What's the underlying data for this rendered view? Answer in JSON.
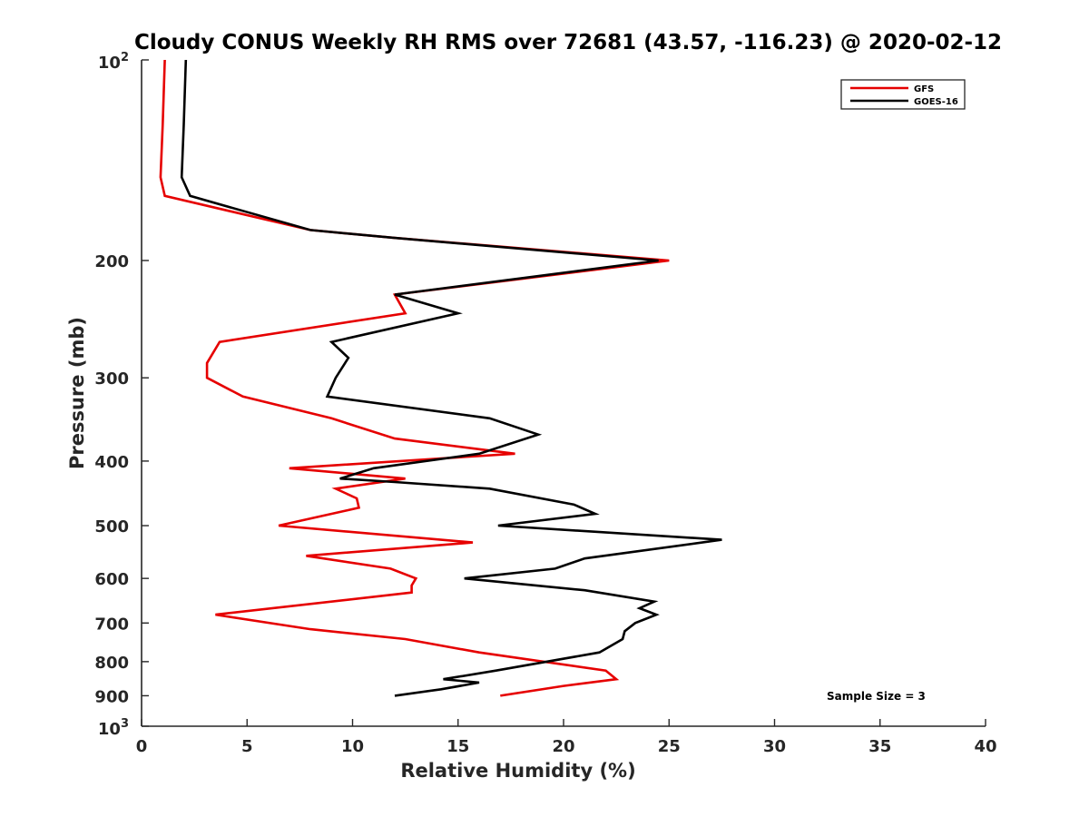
{
  "chart_data": {
    "type": "line",
    "title": "Cloudy CONUS Weekly RH RMS over 72681 (43.57, -116.23) @ 2020-02-12",
    "xlabel": "Relative Humidity (%)",
    "ylabel": "Pressure (mb)",
    "xlim": [
      0,
      40
    ],
    "ylim": [
      100,
      1000
    ],
    "y_scale": "log",
    "y_reversed": true,
    "x_ticks": [
      "0",
      "5",
      "10",
      "15",
      "20",
      "25",
      "30",
      "35",
      "40"
    ],
    "y_ticks": [
      {
        "value": 100,
        "base": "10",
        "exp": "2"
      },
      {
        "value": 200,
        "label": "200"
      },
      {
        "value": 300,
        "label": "300"
      },
      {
        "value": 400,
        "label": "400"
      },
      {
        "value": 500,
        "label": "500"
      },
      {
        "value": 600,
        "label": "600"
      },
      {
        "value": 700,
        "label": "700"
      },
      {
        "value": 800,
        "label": "800"
      },
      {
        "value": 900,
        "label": "900"
      },
      {
        "value": 1000,
        "base": "10",
        "exp": "3"
      }
    ],
    "grid": false,
    "legend_position": "top-right",
    "annotation": "Sample Size = 3",
    "series": [
      {
        "name": "GFS",
        "color": "#e60000",
        "points": [
          [
            1.1,
            100
          ],
          [
            1.0,
            125
          ],
          [
            0.9,
            150
          ],
          [
            1.1,
            160
          ],
          [
            8,
            180
          ],
          [
            12,
            185
          ],
          [
            25,
            200
          ],
          [
            12,
            225
          ],
          [
            12.5,
            240
          ],
          [
            3.7,
            265
          ],
          [
            3.1,
            285
          ],
          [
            3.1,
            300
          ],
          [
            4.8,
            320
          ],
          [
            9,
            345
          ],
          [
            12,
            370
          ],
          [
            17.7,
            390
          ],
          [
            7,
            410
          ],
          [
            12.5,
            425
          ],
          [
            9.2,
            440
          ],
          [
            10.2,
            455
          ],
          [
            10.3,
            470
          ],
          [
            6.5,
            500
          ],
          [
            15.7,
            530
          ],
          [
            7.8,
            555
          ],
          [
            11.8,
            580
          ],
          [
            13.0,
            600
          ],
          [
            12.8,
            615
          ],
          [
            12.8,
            630
          ],
          [
            3.5,
            680
          ],
          [
            8,
            715
          ],
          [
            12.5,
            740
          ],
          [
            16,
            775
          ],
          [
            22,
            825
          ],
          [
            22.5,
            850
          ],
          [
            20,
            870
          ],
          [
            17,
            900
          ]
        ]
      },
      {
        "name": "GOES-16",
        "color": "#000000",
        "points": [
          [
            2.1,
            100
          ],
          [
            2.0,
            125
          ],
          [
            1.9,
            150
          ],
          [
            2.3,
            160
          ],
          [
            8,
            180
          ],
          [
            12,
            185
          ],
          [
            24.5,
            200
          ],
          [
            12,
            225
          ],
          [
            15,
            240
          ],
          [
            9,
            265
          ],
          [
            9.8,
            280
          ],
          [
            9.2,
            300
          ],
          [
            8.8,
            320
          ],
          [
            16.5,
            345
          ],
          [
            18.8,
            365
          ],
          [
            16,
            390
          ],
          [
            11,
            410
          ],
          [
            9.4,
            425
          ],
          [
            12,
            430
          ],
          [
            16.5,
            440
          ],
          [
            20.5,
            465
          ],
          [
            21.5,
            480
          ],
          [
            16.9,
            500
          ],
          [
            27.5,
            525
          ],
          [
            21,
            560
          ],
          [
            19.6,
            580
          ],
          [
            15.3,
            600
          ],
          [
            21,
            625
          ],
          [
            24.3,
            650
          ],
          [
            23.6,
            665
          ],
          [
            24.4,
            680
          ],
          [
            23.4,
            700
          ],
          [
            22.9,
            720
          ],
          [
            22.8,
            740
          ],
          [
            21.7,
            775
          ],
          [
            16.8,
            825
          ],
          [
            14.3,
            850
          ],
          [
            16.0,
            860
          ],
          [
            14.2,
            880
          ],
          [
            12,
            900
          ]
        ]
      }
    ]
  }
}
